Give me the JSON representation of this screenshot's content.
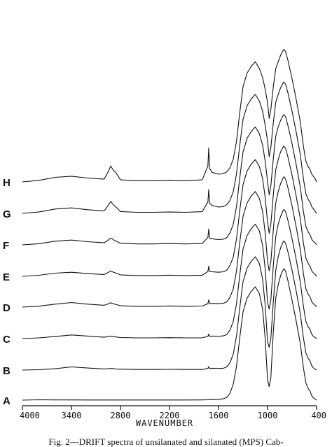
{
  "caption": "Fig. 2—DRIFT spectra of unsilanated and silanated (MPS) Cab-",
  "chart_data": {
    "type": "line",
    "title": "",
    "xlabel": "WAVENUMBER",
    "ylabel": "",
    "xlim": [
      4000,
      400
    ],
    "x_reversed": true,
    "x_ticks": [
      4000,
      3400,
      2800,
      2200,
      1600,
      1000,
      400
    ],
    "x_tick_labels": [
      "4000",
      "3400",
      "2800",
      "2200",
      "1600",
      "1000",
      "400"
    ],
    "offset_stacked": true,
    "y_values_note": "relative absorbance, offset per spectrum",
    "x": [
      4000,
      3800,
      3600,
      3400,
      3200,
      3000,
      2950,
      2920,
      2880,
      2860,
      2800,
      2600,
      2400,
      2200,
      2000,
      1800,
      1730,
      1720,
      1710,
      1680,
      1640,
      1600,
      1540,
      1500,
      1460,
      1420,
      1380,
      1340,
      1300,
      1250,
      1200,
      1150,
      1100,
      1060,
      1030,
      1000,
      980,
      960,
      930,
      900,
      870,
      840,
      810,
      800,
      780,
      750,
      700,
      650,
      600,
      560,
      530,
      500,
      480,
      470,
      460,
      440,
      420,
      400
    ],
    "series": [
      {
        "name": "A",
        "values": [
          0,
          0.3,
          0.2,
          0.2,
          0.15,
          0.1,
          0.1,
          0.1,
          0.1,
          0.1,
          0.1,
          0.1,
          0.1,
          0.1,
          0.1,
          0.2,
          0.3,
          0.3,
          0.3,
          0.4,
          0.5,
          0.7,
          1.2,
          2.5,
          6,
          14,
          30,
          55,
          78,
          90,
          96,
          100,
          94,
          80,
          55,
          18,
          12,
          20,
          60,
          90,
          102,
          110,
          115,
          116,
          114,
          105,
          88,
          70,
          50,
          28,
          15,
          10,
          8,
          6,
          4,
          2,
          1,
          0
        ]
      },
      {
        "name": "B",
        "values": [
          0,
          0.3,
          1.2,
          2.8,
          1.8,
          1.0,
          1.2,
          1.4,
          1.2,
          1.0,
          0.8,
          0.5,
          0.5,
          0.6,
          0.5,
          0.5,
          1.4,
          3.0,
          1.4,
          1.6,
          1.5,
          1.4,
          1.6,
          2.8,
          6.5,
          14,
          30,
          55,
          78,
          90,
          96,
          100,
          94,
          80,
          58,
          25,
          20,
          28,
          60,
          88,
          100,
          108,
          113,
          114,
          112,
          104,
          88,
          70,
          50,
          28,
          15,
          10,
          8,
          6,
          4,
          2,
          1,
          0
        ]
      },
      {
        "name": "C",
        "values": [
          0,
          0.6,
          1.8,
          3.2,
          2.2,
          1.2,
          1.8,
          2.2,
          1.7,
          1.4,
          0.9,
          0.6,
          0.6,
          0.8,
          0.6,
          0.7,
          2.0,
          4.0,
          2.0,
          2.2,
          2.1,
          2.0,
          2.4,
          3.6,
          7.5,
          15,
          31,
          56,
          79,
          91,
          97,
          101,
          95,
          82,
          62,
          32,
          26,
          34,
          64,
          90,
          101,
          108,
          113,
          114,
          112,
          104,
          88,
          70,
          50,
          28,
          15,
          10,
          8,
          6,
          4,
          2,
          1,
          0
        ]
      },
      {
        "name": "D",
        "values": [
          0,
          0.8,
          2.6,
          4.0,
          2.6,
          1.6,
          2.8,
          3.8,
          2.8,
          2.4,
          1.2,
          0.7,
          0.7,
          1.0,
          0.7,
          0.9,
          3.0,
          6.5,
          3.0,
          3.2,
          3.2,
          3.0,
          3.4,
          4.6,
          8.5,
          16,
          32,
          57,
          80,
          92,
          98,
          102,
          96,
          84,
          66,
          40,
          32,
          40,
          68,
          92,
          102,
          109,
          114,
          115,
          113,
          105,
          89,
          71,
          51,
          29,
          16,
          11,
          9,
          7,
          5,
          3,
          2,
          0
        ]
      },
      {
        "name": "E",
        "values": [
          0,
          0.9,
          2.8,
          3.6,
          2.4,
          1.6,
          3.4,
          4.8,
          3.4,
          3.0,
          1.3,
          0.7,
          0.7,
          1.0,
          0.7,
          1.0,
          4.2,
          9.0,
          4.2,
          4.0,
          3.8,
          3.6,
          4.0,
          5.4,
          9.5,
          17,
          33,
          58,
          81,
          93,
          99,
          103,
          97,
          86,
          70,
          48,
          38,
          46,
          72,
          94,
          103,
          110,
          114,
          115,
          113,
          105,
          89,
          71,
          51,
          29,
          16,
          11,
          9,
          7,
          5,
          3,
          2,
          0
        ]
      },
      {
        "name": "F",
        "values": [
          0,
          1.0,
          3.2,
          4.2,
          2.8,
          1.8,
          4.2,
          6.0,
          4.2,
          3.6,
          1.4,
          0.8,
          0.8,
          1.1,
          0.8,
          1.2,
          6.5,
          14,
          6.0,
          5.4,
          5.0,
          4.6,
          5.0,
          6.4,
          10.5,
          18,
          34,
          59,
          82,
          94,
          100,
          104,
          98,
          88,
          74,
          56,
          44,
          52,
          76,
          96,
          104,
          110,
          114,
          115,
          113,
          105,
          89,
          71,
          51,
          29,
          16,
          11,
          9,
          7,
          5,
          3,
          2,
          0
        ]
      },
      {
        "name": "G",
        "values": [
          0,
          1.2,
          3.8,
          4.8,
          3.2,
          2.2,
          7.0,
          10.5,
          7.0,
          6.0,
          1.6,
          0.9,
          0.9,
          1.2,
          0.9,
          1.5,
          10,
          21,
          9.0,
          7.0,
          6.2,
          5.6,
          6.0,
          7.6,
          11.5,
          19,
          35,
          60,
          83,
          95,
          101,
          105,
          99,
          90,
          78,
          64,
          50,
          58,
          80,
          98,
          105,
          111,
          115,
          116,
          114,
          106,
          90,
          72,
          52,
          30,
          17,
          12,
          10,
          8,
          6,
          4,
          2,
          0
        ]
      },
      {
        "name": "H",
        "values": [
          0,
          1.3,
          4.0,
          5.0,
          3.4,
          2.4,
          9.0,
          14,
          9.5,
          8.5,
          1.8,
          1.0,
          1.0,
          1.3,
          1.0,
          1.8,
          14,
          30,
          12,
          8.5,
          7.5,
          6.8,
          7.4,
          8.8,
          12.5,
          20,
          36,
          61,
          84,
          96,
          102,
          106,
          100,
          92,
          82,
          70,
          56,
          64,
          84,
          100,
          106,
          112,
          116,
          117,
          115,
          107,
          91,
          73,
          53,
          31,
          18,
          13,
          11,
          9,
          7,
          5,
          3,
          0
        ]
      }
    ]
  }
}
